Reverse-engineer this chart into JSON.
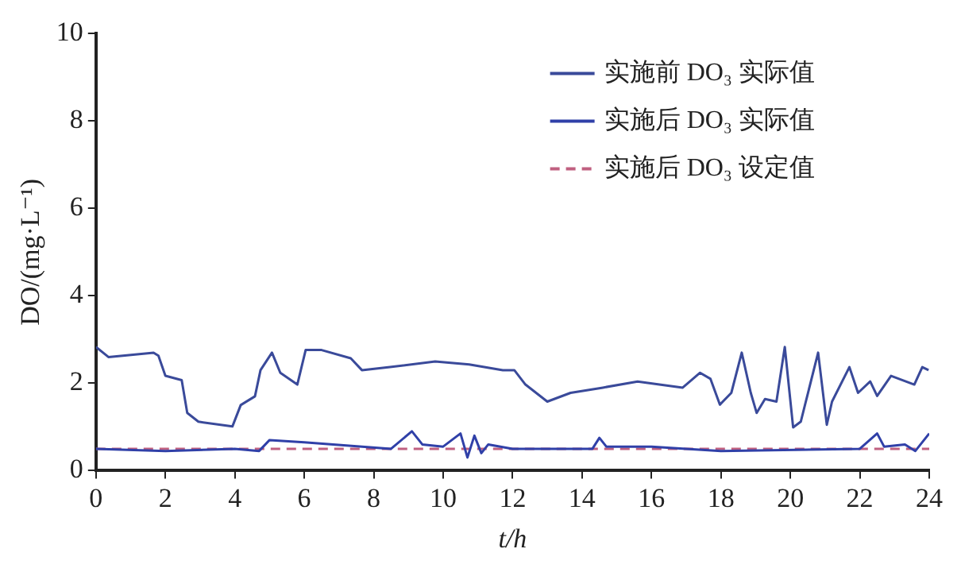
{
  "chart_data": {
    "type": "line",
    "xlabel": "t/h",
    "ylabel": "DO/(mg·L⁻¹)",
    "xlim": [
      0,
      24
    ],
    "xticks": [
      0,
      2,
      4,
      6,
      8,
      10,
      12,
      14,
      16,
      18,
      20,
      22,
      24
    ],
    "ylim": [
      0,
      10
    ],
    "yticks": [
      0,
      2,
      4,
      6,
      8,
      10
    ],
    "grid": false,
    "legend": "top right",
    "marker": "none",
    "series": [
      {
        "name": "实施前 DO₃ 实际值",
        "color": "#3a4a9a",
        "line_style": "solid",
        "x": [
          0,
          0.36,
          1.66,
          1.8,
          2.0,
          2.47,
          2.63,
          2.95,
          3.93,
          4.17,
          4.58,
          4.74,
          5.07,
          5.31,
          5.8,
          6.04,
          6.5,
          7.34,
          7.66,
          8.47,
          9.77,
          10.75,
          11.72,
          12.05,
          12.37,
          13.0,
          13.67,
          14.6,
          15.6,
          16.9,
          17.4,
          17.7,
          17.97,
          18.3,
          18.6,
          18.86,
          19.03,
          19.27,
          19.6,
          19.84,
          20.08,
          20.3,
          20.8,
          21.05,
          21.2,
          21.7,
          21.95,
          22.3,
          22.5,
          22.9,
          23.57,
          23.8,
          23.98
        ],
        "values": [
          2.83,
          2.6,
          2.7,
          2.63,
          2.17,
          2.07,
          1.32,
          1.12,
          1.01,
          1.5,
          1.7,
          2.3,
          2.7,
          2.24,
          1.97,
          2.76,
          2.76,
          2.57,
          2.3,
          2.37,
          2.5,
          2.43,
          2.3,
          2.3,
          1.97,
          1.58,
          1.78,
          1.9,
          2.04,
          1.9,
          2.24,
          2.1,
          1.51,
          1.78,
          2.7,
          1.78,
          1.32,
          1.64,
          1.58,
          2.83,
          0.99,
          1.12,
          2.7,
          1.05,
          1.58,
          2.37,
          1.78,
          2.04,
          1.71,
          2.17,
          1.97,
          2.37,
          2.3
        ]
      },
      {
        "name": "实施后 DO₃ 实际值",
        "color": "#3040a8",
        "line_style": "solid",
        "x": [
          0,
          2,
          4,
          4.7,
          5.0,
          6,
          8.5,
          9.1,
          9.4,
          10.0,
          10.5,
          10.7,
          10.9,
          11.1,
          11.3,
          12,
          14.3,
          14.5,
          14.7,
          16,
          18,
          22,
          22.5,
          22.7,
          23.3,
          23.6,
          24
        ],
        "values": [
          0.5,
          0.45,
          0.5,
          0.45,
          0.7,
          0.65,
          0.5,
          0.9,
          0.6,
          0.55,
          0.85,
          0.3,
          0.8,
          0.4,
          0.6,
          0.5,
          0.5,
          0.75,
          0.55,
          0.55,
          0.45,
          0.5,
          0.85,
          0.55,
          0.6,
          0.45,
          0.85
        ]
      },
      {
        "name": "实施后 DO₃ 设定值",
        "color": "#c06080",
        "line_style": "dashed",
        "x": [
          0,
          24
        ],
        "values": [
          0.5,
          0.5
        ]
      }
    ]
  }
}
